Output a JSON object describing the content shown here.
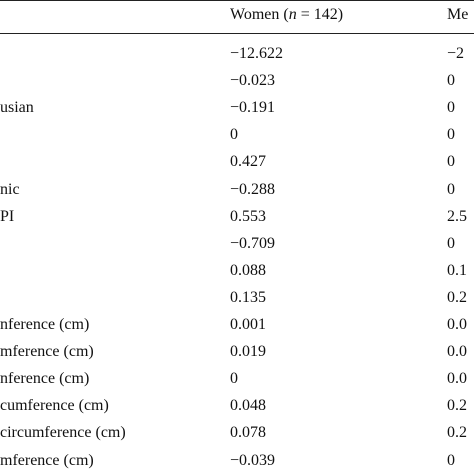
{
  "table": {
    "header": {
      "women": [
        "Women (",
        "n",
        " = 142)"
      ],
      "men": "Me"
    },
    "rows": [
      {
        "women": "−12.622",
        "men": "−2"
      },
      {
        "women": "−0.023",
        "men": "0"
      },
      {
        "label": "usian",
        "women": "−0.191",
        "men": "0"
      },
      {
        "women": "0",
        "men": "0"
      },
      {
        "women": "0.427",
        "men": "0"
      },
      {
        "label": "nic",
        "women": "−0.288",
        "men": "0"
      },
      {
        "label": "PI",
        "women": "0.553",
        "men": "2.5"
      },
      {
        "women": "−0.709",
        "men": "0"
      },
      {
        "women": "0.088",
        "men": "0.1"
      },
      {
        "women": "0.135",
        "men": "0.2"
      },
      {
        "label": "nference (cm)",
        "women": "0.001",
        "men": "0.0"
      },
      {
        "label": "mference (cm)",
        "women": "0.019",
        "men": "0.0"
      },
      {
        "label": "nference (cm)",
        "women": "0",
        "men": "0.0"
      },
      {
        "label": "cumference (cm)",
        "women": "0.048",
        "men": "0.2"
      },
      {
        "label": "circumference (cm)",
        "women": "0.078",
        "men": "0.2"
      },
      {
        "label": "mference (cm)",
        "women": "−0.039",
        "men": "0"
      }
    ]
  }
}
